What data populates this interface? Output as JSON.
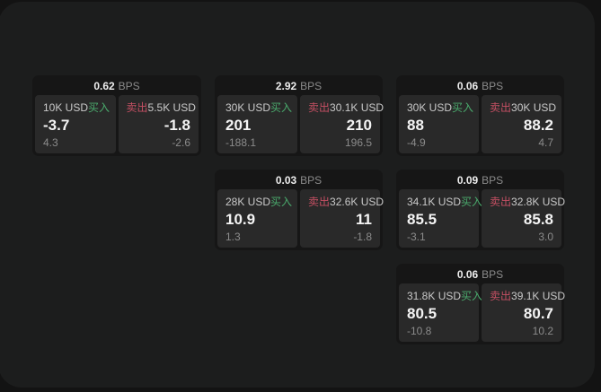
{
  "labels": {
    "bps": "BPS",
    "buy": "买入",
    "sell": "卖出"
  },
  "colors": {
    "buy_accent": "#4aab6d",
    "sell_accent": "#c44f63",
    "panel_bg": "#1c1d1d",
    "card_bg": "#161616",
    "tile_bg": "#292929"
  },
  "cards": [
    {
      "bps": "0.62",
      "buy": {
        "amount": "10K USD",
        "price": "-3.7",
        "change": "4.3"
      },
      "sell": {
        "amount": "5.5K USD",
        "price": "-1.8",
        "change": "-2.6"
      }
    },
    {
      "bps": "2.92",
      "buy": {
        "amount": "30K USD",
        "price": "201",
        "change": "-188.1"
      },
      "sell": {
        "amount": "30.1K USD",
        "price": "210",
        "change": "196.5"
      }
    },
    {
      "bps": "0.06",
      "buy": {
        "amount": "30K USD",
        "price": "88",
        "change": "-4.9"
      },
      "sell": {
        "amount": "30K USD",
        "price": "88.2",
        "change": "4.7"
      }
    },
    {
      "bps": "0.03",
      "buy": {
        "amount": "28K USD",
        "price": "10.9",
        "change": "1.3"
      },
      "sell": {
        "amount": "32.6K USD",
        "price": "11",
        "change": "-1.8"
      }
    },
    {
      "bps": "0.09",
      "buy": {
        "amount": "34.1K USD",
        "price": "85.5",
        "change": "-3.1"
      },
      "sell": {
        "amount": "32.8K USD",
        "price": "85.8",
        "change": "3.0"
      }
    },
    {
      "bps": "0.06",
      "buy": {
        "amount": "31.8K USD",
        "price": "80.5",
        "change": "-10.8"
      },
      "sell": {
        "amount": "39.1K USD",
        "price": "80.7",
        "change": "10.2"
      }
    }
  ]
}
